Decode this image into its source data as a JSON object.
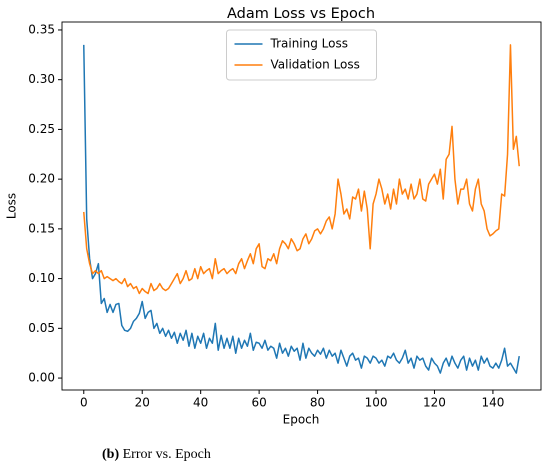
{
  "chart_data": {
    "type": "line",
    "title": "Adam Loss vs Epoch",
    "xlabel": "Epoch",
    "ylabel": "Loss",
    "x": [
      0,
      1,
      2,
      3,
      4,
      5,
      6,
      7,
      8,
      9,
      10,
      11,
      12,
      13,
      14,
      15,
      16,
      17,
      18,
      19,
      20,
      21,
      22,
      23,
      24,
      25,
      26,
      27,
      28,
      29,
      30,
      31,
      32,
      33,
      34,
      35,
      36,
      37,
      38,
      39,
      40,
      41,
      42,
      43,
      44,
      45,
      46,
      47,
      48,
      49,
      50,
      51,
      52,
      53,
      54,
      55,
      56,
      57,
      58,
      59,
      60,
      61,
      62,
      63,
      64,
      65,
      66,
      67,
      68,
      69,
      70,
      71,
      72,
      73,
      74,
      75,
      76,
      77,
      78,
      79,
      80,
      81,
      82,
      83,
      84,
      85,
      86,
      87,
      88,
      89,
      90,
      91,
      92,
      93,
      94,
      95,
      96,
      97,
      98,
      99,
      100,
      101,
      102,
      103,
      104,
      105,
      106,
      107,
      108,
      109,
      110,
      111,
      112,
      113,
      114,
      115,
      116,
      117,
      118,
      119,
      120,
      121,
      122,
      123,
      124,
      125,
      126,
      127,
      128,
      129,
      130,
      131,
      132,
      133,
      134,
      135,
      136,
      137,
      138,
      139,
      140,
      141,
      142,
      143,
      144,
      145,
      146,
      147,
      148,
      149
    ],
    "series": [
      {
        "name": "Training Loss",
        "color": "#1f77b4",
        "values": [
          0.335,
          0.16,
          0.12,
          0.1,
          0.105,
          0.115,
          0.075,
          0.08,
          0.066,
          0.074,
          0.066,
          0.074,
          0.075,
          0.053,
          0.048,
          0.047,
          0.05,
          0.057,
          0.06,
          0.065,
          0.077,
          0.06,
          0.066,
          0.068,
          0.05,
          0.055,
          0.045,
          0.05,
          0.042,
          0.048,
          0.04,
          0.046,
          0.035,
          0.045,
          0.038,
          0.048,
          0.032,
          0.045,
          0.03,
          0.042,
          0.035,
          0.045,
          0.03,
          0.04,
          0.035,
          0.055,
          0.028,
          0.043,
          0.03,
          0.04,
          0.03,
          0.042,
          0.025,
          0.04,
          0.03,
          0.038,
          0.032,
          0.045,
          0.028,
          0.036,
          0.035,
          0.03,
          0.038,
          0.028,
          0.032,
          0.03,
          0.02,
          0.035,
          0.025,
          0.03,
          0.022,
          0.032,
          0.027,
          0.03,
          0.018,
          0.035,
          0.02,
          0.03,
          0.025,
          0.022,
          0.028,
          0.024,
          0.03,
          0.02,
          0.028,
          0.022,
          0.025,
          0.015,
          0.028,
          0.02,
          0.012,
          0.022,
          0.025,
          0.018,
          0.02,
          0.01,
          0.022,
          0.02,
          0.015,
          0.022,
          0.02,
          0.015,
          0.018,
          0.012,
          0.022,
          0.02,
          0.025,
          0.018,
          0.015,
          0.02,
          0.028,
          0.015,
          0.02,
          0.01,
          0.022,
          0.018,
          0.02,
          0.012,
          0.008,
          0.02,
          0.015,
          0.012,
          0.005,
          0.015,
          0.02,
          0.012,
          0.022,
          0.015,
          0.01,
          0.018,
          0.022,
          0.008,
          0.02,
          0.012,
          0.018,
          0.008,
          0.022,
          0.015,
          0.02,
          0.012,
          0.01,
          0.015,
          0.01,
          0.018,
          0.03,
          0.012,
          0.015,
          0.01,
          0.005,
          0.022
        ]
      },
      {
        "name": "Validation Loss",
        "color": "#ff7f0e",
        "values": [
          0.167,
          0.13,
          0.115,
          0.105,
          0.108,
          0.105,
          0.108,
          0.1,
          0.102,
          0.1,
          0.098,
          0.1,
          0.097,
          0.095,
          0.1,
          0.092,
          0.095,
          0.09,
          0.092,
          0.085,
          0.09,
          0.087,
          0.085,
          0.095,
          0.088,
          0.09,
          0.095,
          0.09,
          0.088,
          0.09,
          0.095,
          0.1,
          0.105,
          0.095,
          0.1,
          0.108,
          0.098,
          0.1,
          0.11,
          0.1,
          0.112,
          0.105,
          0.108,
          0.11,
          0.1,
          0.12,
          0.105,
          0.108,
          0.11,
          0.105,
          0.108,
          0.11,
          0.105,
          0.115,
          0.12,
          0.11,
          0.118,
          0.125,
          0.115,
          0.13,
          0.135,
          0.112,
          0.11,
          0.12,
          0.118,
          0.125,
          0.115,
          0.13,
          0.138,
          0.135,
          0.13,
          0.14,
          0.135,
          0.128,
          0.13,
          0.14,
          0.145,
          0.135,
          0.14,
          0.148,
          0.15,
          0.145,
          0.15,
          0.158,
          0.162,
          0.15,
          0.165,
          0.2,
          0.185,
          0.165,
          0.17,
          0.16,
          0.182,
          0.18,
          0.19,
          0.168,
          0.188,
          0.17,
          0.13,
          0.175,
          0.185,
          0.2,
          0.19,
          0.175,
          0.185,
          0.17,
          0.19,
          0.175,
          0.2,
          0.185,
          0.19,
          0.18,
          0.195,
          0.18,
          0.185,
          0.2,
          0.18,
          0.178,
          0.195,
          0.2,
          0.205,
          0.195,
          0.21,
          0.18,
          0.22,
          0.225,
          0.253,
          0.2,
          0.175,
          0.19,
          0.19,
          0.2,
          0.175,
          0.168,
          0.19,
          0.2,
          0.175,
          0.168,
          0.15,
          0.143,
          0.145,
          0.148,
          0.15,
          0.185,
          0.183,
          0.225,
          0.335,
          0.23,
          0.243,
          0.213
        ]
      }
    ],
    "xlim": [
      -7.45,
      156.45
    ],
    "xticks": [
      0,
      20,
      40,
      60,
      80,
      100,
      120,
      140
    ],
    "ylim": [
      -0.012,
      0.358
    ],
    "yticks": [
      {
        "value": 0,
        "label": "0.00"
      },
      {
        "value": 0.05,
        "label": "0.05"
      },
      {
        "value": 0.1,
        "label": "0.10"
      },
      {
        "value": 0.15,
        "label": "0.15"
      },
      {
        "value": 0.2,
        "label": "0.20"
      },
      {
        "value": 0.25,
        "label": "0.25"
      },
      {
        "value": 0.3,
        "label": "0.30"
      },
      {
        "value": 0.35,
        "label": "0.35"
      }
    ],
    "legend": "upper center"
  },
  "caption": {
    "label": "(b)",
    "text": "Error vs. Epoch"
  }
}
